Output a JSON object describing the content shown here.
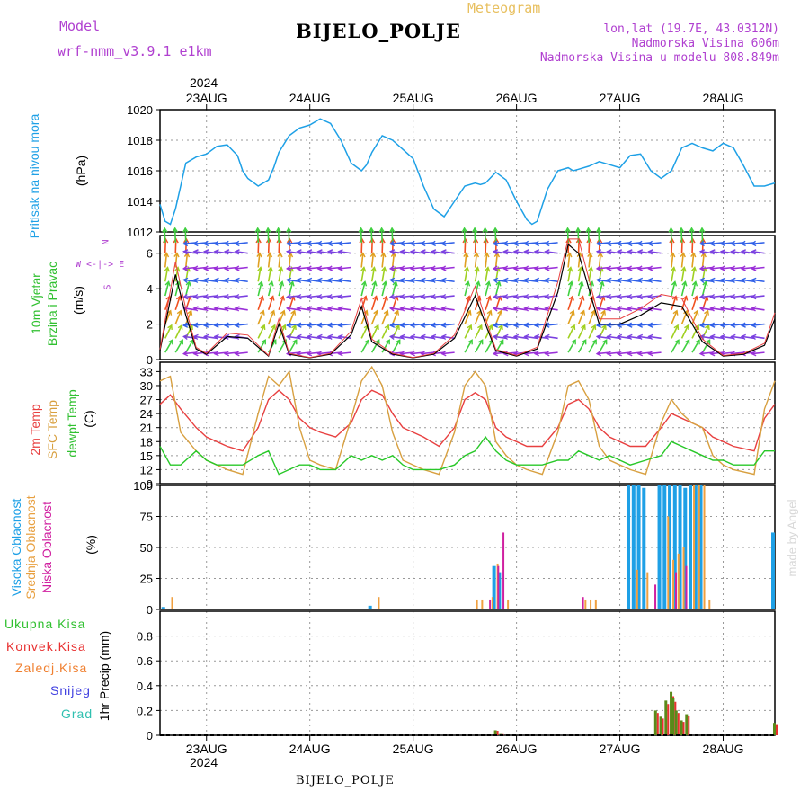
{
  "header": {
    "model_label": "Model",
    "model_name": "wrf-nmm_v3.9.1  e1km",
    "station_title": "BIJELO_POLJE",
    "product": "Meteogram",
    "lonlat": "lon,lat (19.7E, 43.0312N)",
    "altitude": "Nadmorska Visina 606m",
    "model_altitude": "Nadmorska Visina u modelu 808.849m",
    "footer_station": "BIJELO_POLJE",
    "credit": "made by Angel"
  },
  "colors": {
    "pressure": "#1ea0e6",
    "temp2m": "#e84040",
    "sfc": "#d8a040",
    "dewpt": "#28c828",
    "high_cloud": "#1ea0e6",
    "mid_cloud": "#f0a040",
    "low_cloud": "#d020a0",
    "total_precip": "#30c030",
    "conv_precip": "#e83030",
    "frozen_precip": "#f08030",
    "snow": "#4040e0",
    "graupel": "#30c0b0"
  },
  "time_axis": {
    "year": "2024",
    "days": [
      "23AUG",
      "24AUG",
      "25AUG",
      "26AUG",
      "27AUG",
      "28AUG"
    ]
  },
  "chart_data": [
    {
      "type": "line",
      "name": "pressure",
      "ylabel_title": "Pritisak na nivou mora",
      "ylabel_unit": "(hPa)",
      "ylim": [
        1012,
        1020
      ],
      "yticks": [
        1012,
        1014,
        1016,
        1018,
        1020
      ],
      "x_start": 22.55,
      "x_end": 28.5,
      "grid": true,
      "x": [
        22.55,
        22.6,
        22.65,
        22.7,
        22.75,
        22.8,
        22.9,
        23.0,
        23.1,
        23.2,
        23.3,
        23.35,
        23.4,
        23.5,
        23.6,
        23.65,
        23.7,
        23.8,
        23.9,
        24.0,
        24.1,
        24.2,
        24.3,
        24.4,
        24.5,
        24.55,
        24.6,
        24.7,
        24.8,
        24.9,
        25.0,
        25.1,
        25.2,
        25.3,
        25.4,
        25.5,
        25.6,
        25.65,
        25.7,
        25.8,
        25.9,
        26.0,
        26.1,
        26.15,
        26.2,
        26.3,
        26.4,
        26.5,
        26.55,
        26.6,
        26.7,
        26.8,
        26.9,
        27.0,
        27.1,
        27.2,
        27.3,
        27.4,
        27.5,
        27.6,
        27.7,
        27.8,
        27.9,
        28.0,
        28.1,
        28.2,
        28.3,
        28.4,
        28.5
      ],
      "values": [
        1013.8,
        1012.7,
        1012.5,
        1013.5,
        1015.0,
        1016.5,
        1016.9,
        1017.1,
        1017.6,
        1017.7,
        1017.0,
        1016.0,
        1015.5,
        1015.0,
        1015.4,
        1016.2,
        1017.2,
        1018.3,
        1018.8,
        1019.0,
        1019.4,
        1019.1,
        1018.0,
        1016.5,
        1016.0,
        1016.4,
        1017.2,
        1018.3,
        1018.0,
        1017.4,
        1016.8,
        1015.0,
        1013.5,
        1013.0,
        1014.0,
        1015.0,
        1015.2,
        1015.1,
        1015.2,
        1015.9,
        1015.4,
        1014.0,
        1012.8,
        1012.5,
        1012.7,
        1014.8,
        1016.0,
        1016.2,
        1016.0,
        1016.1,
        1016.3,
        1016.6,
        1016.4,
        1016.2,
        1017.0,
        1017.1,
        1016.0,
        1015.5,
        1016.0,
        1017.5,
        1017.8,
        1017.5,
        1017.3,
        1017.8,
        1017.5,
        1016.3,
        1015.0,
        1015.0,
        1015.2
      ]
    },
    {
      "type": "line",
      "name": "wind",
      "ylabel_title": "10m Vjetar",
      "ylabel_title2": "Brzina i Pravac",
      "ylabel_unit": "(m/s)",
      "compass": "N",
      "compass_sub": "W <-|-> E",
      "compass_s": "S",
      "ylim": [
        0,
        7
      ],
      "yticks": [
        0,
        2,
        4,
        6
      ],
      "x": [
        22.55,
        22.7,
        22.8,
        22.9,
        23.0,
        23.2,
        23.4,
        23.6,
        23.7,
        23.8,
        24.0,
        24.2,
        24.4,
        24.5,
        24.6,
        24.8,
        25.0,
        25.2,
        25.4,
        25.6,
        25.7,
        25.8,
        26.0,
        26.2,
        26.4,
        26.5,
        26.6,
        26.8,
        27.0,
        27.2,
        27.4,
        27.6,
        27.8,
        28.0,
        28.2,
        28.4,
        28.5
      ],
      "values": [
        0.5,
        4.8,
        2.5,
        0.6,
        0.3,
        1.3,
        1.2,
        0.2,
        2.0,
        0.3,
        0.1,
        0.3,
        1.4,
        3.0,
        1.0,
        0.3,
        0.1,
        0.3,
        1.2,
        3.6,
        2.0,
        0.5,
        0.2,
        0.6,
        3.8,
        6.5,
        6.0,
        2.0,
        2.0,
        2.5,
        3.2,
        3.0,
        1.0,
        0.2,
        0.3,
        0.8,
        2.3
      ]
    },
    {
      "type": "line",
      "name": "temperature",
      "ylabel_title": "2m Temp",
      "ylabel_title2": "SFC Temp",
      "ylabel_title3": "dewpt Temp",
      "ylabel_unit": "(C)",
      "ylim": [
        9,
        35
      ],
      "yticks": [
        9,
        12,
        15,
        18,
        21,
        24,
        27,
        30,
        33
      ],
      "x": [
        22.55,
        22.65,
        22.75,
        22.9,
        23.0,
        23.1,
        23.2,
        23.35,
        23.5,
        23.6,
        23.7,
        23.8,
        23.9,
        24.0,
        24.1,
        24.25,
        24.4,
        24.5,
        24.6,
        24.7,
        24.8,
        24.9,
        25.0,
        25.1,
        25.25,
        25.4,
        25.5,
        25.6,
        25.7,
        25.8,
        25.9,
        26.0,
        26.1,
        26.25,
        26.4,
        26.5,
        26.6,
        26.7,
        26.8,
        26.9,
        27.0,
        27.1,
        27.25,
        27.4,
        27.5,
        27.6,
        27.7,
        27.8,
        27.9,
        28.0,
        28.1,
        28.3,
        28.4,
        28.5
      ],
      "series": [
        {
          "name": "2m Temp",
          "values": [
            26,
            28,
            25,
            21,
            19,
            18,
            17,
            16,
            21,
            27,
            29,
            27,
            23,
            21,
            20,
            19,
            22,
            27,
            29,
            28,
            24,
            21,
            20,
            19,
            17,
            21,
            27,
            28.5,
            27,
            21,
            19,
            18,
            17,
            17,
            21,
            26,
            27,
            25,
            21,
            19,
            18,
            17,
            17,
            21,
            24,
            23,
            22,
            21,
            19,
            18,
            17,
            16,
            23,
            26
          ]
        },
        {
          "name": "SFC Temp",
          "values": [
            31,
            32,
            20,
            16,
            14,
            13,
            12,
            11,
            24,
            32,
            30,
            33,
            21,
            14,
            13,
            12,
            23,
            31,
            34,
            30,
            20,
            14,
            13,
            12,
            11,
            20,
            30,
            33,
            30,
            18,
            15,
            13,
            12,
            11,
            20,
            30,
            31,
            27,
            17,
            14,
            13,
            12,
            11,
            22,
            27,
            24,
            22,
            21,
            15,
            13,
            12,
            11,
            25,
            31
          ]
        },
        {
          "name": "dewpt Temp",
          "values": [
            17,
            13,
            13,
            16,
            14,
            13,
            13,
            13,
            15,
            16,
            11,
            12,
            13,
            13,
            12,
            12,
            15,
            14,
            15,
            14,
            15,
            13,
            12,
            12,
            12,
            13,
            15,
            16,
            19,
            16,
            14,
            13,
            13,
            13,
            14,
            14,
            16,
            15,
            14,
            15,
            14,
            13,
            14,
            15,
            18,
            17,
            16,
            15,
            14,
            14,
            13,
            13,
            16,
            16
          ]
        }
      ]
    },
    {
      "type": "bar",
      "name": "cloud",
      "ylabel_title": "Visoka Oblacnost",
      "ylabel_title2": "Srednja Oblacnost",
      "ylabel_title3": "Niska Oblacnost",
      "ylabel_unit": "(%)",
      "ylim": [
        0,
        100
      ],
      "yticks": [
        0,
        25,
        50,
        75,
        100
      ],
      "series": [
        {
          "name": "Visoka Oblacnost",
          "x": [
            22.6,
            24.6,
            25.8,
            25.85,
            27.1,
            27.15,
            27.2,
            27.25,
            27.4,
            27.45,
            27.5,
            27.55,
            27.6,
            27.65,
            27.7,
            27.75,
            27.8,
            28.5
          ],
          "values": [
            2,
            3,
            35,
            30,
            100,
            100,
            100,
            98,
            100,
            100,
            100,
            100,
            100,
            98,
            100,
            100,
            100,
            62
          ]
        },
        {
          "name": "Srednja Oblacnost",
          "x": [
            22.65,
            24.65,
            25.6,
            25.65,
            25.75,
            25.8,
            25.9,
            26.65,
            26.7,
            26.75,
            27.15,
            27.25,
            27.45,
            27.5,
            27.55,
            27.6,
            27.7,
            27.75,
            27.8,
            27.85
          ],
          "values": [
            10,
            10,
            8,
            8,
            10,
            37,
            8,
            8,
            8,
            8,
            32,
            30,
            75,
            40,
            45,
            50,
            100,
            100,
            100,
            8
          ]
        },
        {
          "name": "Niska Oblacnost",
          "x": [
            25.7,
            25.78,
            25.83,
            26.6,
            27.3,
            27.5,
            27.6
          ],
          "values": [
            8,
            35,
            62,
            10,
            20,
            30,
            35
          ]
        }
      ]
    },
    {
      "type": "bar",
      "name": "precip",
      "ylabel_title": "1hr Precip (mm)",
      "legend": [
        "Ukupna Kisa",
        "Konvek.Kisa",
        "Zaledj.Kisa",
        "Snijeg",
        "Grad"
      ],
      "ylim": [
        0,
        1.0
      ],
      "yticks": [
        0,
        0.2,
        0.4,
        0.6,
        0.8
      ],
      "x": [
        25.8,
        25.85,
        27.35,
        27.4,
        27.45,
        27.5,
        27.52,
        27.55,
        27.6,
        27.65,
        28.5
      ],
      "series": [
        {
          "name": "Ukupna Kisa",
          "values": [
            0.04,
            0.01,
            0.2,
            0.15,
            0.28,
            0.35,
            0.3,
            0.2,
            0.12,
            0.17,
            0.1
          ]
        }
      ]
    }
  ]
}
